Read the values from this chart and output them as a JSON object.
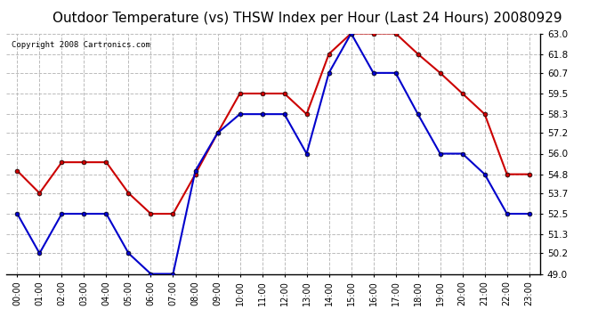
{
  "title": "Outdoor Temperature (vs) THSW Index per Hour (Last 24 Hours) 20080929",
  "copyright": "Copyright 2008 Cartronics.com",
  "hours": [
    "00:00",
    "01:00",
    "02:00",
    "03:00",
    "04:00",
    "05:00",
    "06:00",
    "07:00",
    "08:00",
    "09:00",
    "10:00",
    "11:00",
    "12:00",
    "13:00",
    "14:00",
    "15:00",
    "16:00",
    "17:00",
    "18:00",
    "19:00",
    "20:00",
    "21:00",
    "22:00",
    "23:00"
  ],
  "temp": [
    52.5,
    50.2,
    52.5,
    52.5,
    52.5,
    50.2,
    49.0,
    49.0,
    55.0,
    57.2,
    58.3,
    58.3,
    58.3,
    56.0,
    60.7,
    63.0,
    60.7,
    60.7,
    58.3,
    56.0,
    56.0,
    54.8,
    52.5,
    52.5
  ],
  "thsw": [
    55.0,
    53.7,
    55.5,
    55.5,
    55.5,
    53.7,
    52.5,
    52.5,
    54.8,
    57.2,
    59.5,
    59.5,
    59.5,
    58.3,
    61.8,
    63.0,
    63.0,
    63.0,
    61.8,
    60.7,
    59.5,
    58.3,
    54.8,
    54.8
  ],
  "ylim_min": 49.0,
  "ylim_max": 63.0,
  "yticks": [
    49.0,
    50.2,
    51.3,
    52.5,
    53.7,
    54.8,
    56.0,
    57.2,
    58.3,
    59.5,
    60.7,
    61.8,
    63.0
  ],
  "temp_color": "#0000cc",
  "thsw_color": "#cc0000",
  "bg_color": "#ffffff",
  "grid_color": "#bbbbbb",
  "title_fontsize": 11,
  "marker": "o",
  "marker_size": 3.5
}
